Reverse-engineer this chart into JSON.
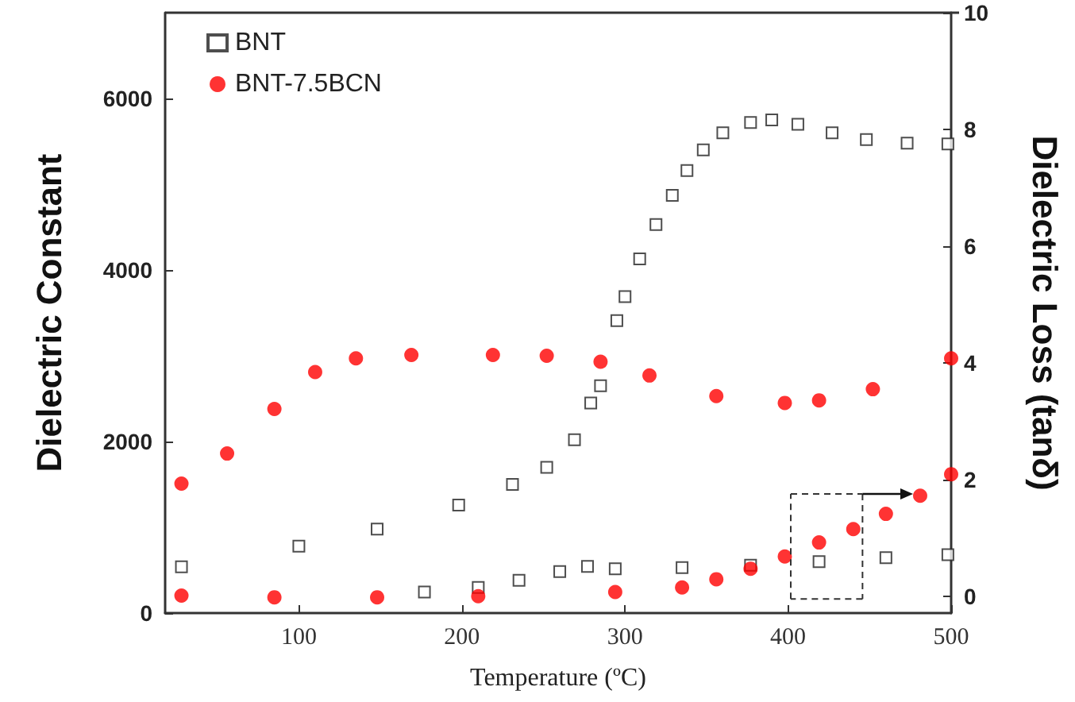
{
  "chart_data": {
    "type": "scatter",
    "xlabel": "Temperature (ºC)",
    "ylabel": "Dielectric Constant",
    "y2label": "Dielectric Loss (tanδ)",
    "xlim": [
      18,
      500
    ],
    "xticks": [
      100,
      200,
      300,
      400,
      500
    ],
    "ylim": [
      0,
      7000
    ],
    "yticks": [
      0,
      2000,
      4000,
      6000
    ],
    "y2lim": [
      -0.29,
      10
    ],
    "y2ticks": [
      0,
      2,
      4,
      6,
      8,
      10
    ],
    "legend": "top left",
    "grid": false,
    "series": [
      {
        "name": "BNT",
        "color": "#222222",
        "marker": "square",
        "x": [
          28,
          100,
          148,
          198,
          231,
          252,
          269,
          279,
          285,
          295,
          300,
          309,
          319,
          329,
          338,
          348,
          360,
          377,
          390,
          406,
          427,
          448,
          473,
          498
        ],
        "values": [
          540,
          780,
          980,
          1260,
          1500,
          1700,
          2020,
          2450,
          2650,
          3410,
          3690,
          4130,
          4530,
          4870,
          5160,
          5400,
          5600,
          5720,
          5750,
          5700,
          5600,
          5520,
          5480,
          5470
        ]
      },
      {
        "name": "BNT-7.5BCN",
        "color": "#ff0000",
        "marker": "circle",
        "x": [
          28,
          56,
          85,
          110,
          135,
          169,
          219,
          252,
          285,
          315,
          356,
          398,
          419,
          452,
          500
        ],
        "values": [
          1510,
          1860,
          2380,
          2810,
          2970,
          3010,
          3010,
          3000,
          2930,
          2770,
          2530,
          2450,
          2480,
          2610,
          2970
        ]
      },
      {
        "color": "#222222",
        "marker": "square",
        "axis": "y2",
        "x": [
          177,
          210,
          235,
          260,
          277,
          294,
          335,
          377,
          419,
          460,
          498
        ],
        "values": [
          0.07,
          0.15,
          0.27,
          0.42,
          0.51,
          0.47,
          0.49,
          0.53,
          0.59,
          0.66,
          0.71
        ]
      },
      {
        "color": "#ff0000",
        "marker": "circle",
        "axis": "y2",
        "x": [
          28,
          85,
          148,
          210,
          294,
          335,
          356,
          377,
          398,
          419,
          440,
          460,
          481,
          500
        ],
        "values": [
          0.01,
          -0.02,
          -0.02,
          0,
          0.07,
          0.15,
          0.29,
          0.47,
          0.68,
          0.92,
          1.15,
          1.41,
          1.72,
          2.09
        ]
      }
    ]
  }
}
